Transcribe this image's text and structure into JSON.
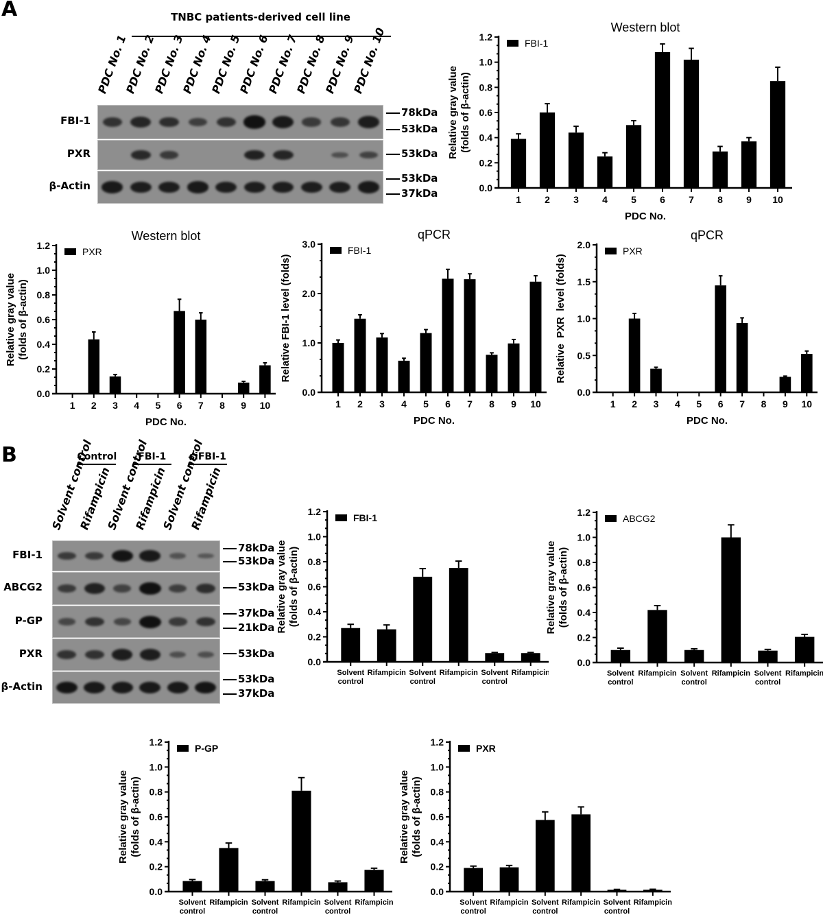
{
  "panel_a": {
    "letter": "A",
    "blot": {
      "title": "TNBC patients-derived cell line",
      "lanes": [
        "PDC No. 1",
        "PDC No. 2",
        "PDC No. 3",
        "PDC No. 4",
        "PDC No. 5",
        "PDC No. 6",
        "PDC No. 7",
        "PDC No. 8",
        "PDC No. 9",
        "PDC No. 10"
      ],
      "rows": [
        {
          "label": "FBI-1",
          "markers": [
            "78kDa",
            "53kDa"
          ],
          "intensity": [
            0.6,
            0.75,
            0.65,
            0.45,
            0.6,
            1.0,
            0.9,
            0.5,
            0.55,
            0.85
          ]
        },
        {
          "label": "PXR",
          "markers": [
            "53kDa"
          ],
          "intensity": [
            0,
            0.7,
            0.5,
            0,
            0,
            0.8,
            0.75,
            0,
            0.25,
            0.4
          ]
        },
        {
          "label": "β-Actin",
          "markers": [
            "53kDa",
            "37kDa"
          ],
          "intensity": [
            0.9,
            0.85,
            0.85,
            0.9,
            0.85,
            0.85,
            0.85,
            0.85,
            0.85,
            0.9
          ]
        }
      ]
    }
  },
  "panel_b": {
    "letter": "B",
    "blot": {
      "groups": [
        "Control",
        "FBI-1",
        "siFBI-1"
      ],
      "lanes": [
        "Solvent control",
        "Rifampicin",
        "Solvent control",
        "Rifampicin",
        "Solvent control",
        "Rifampicin"
      ],
      "rows": [
        {
          "label": "FBI-1",
          "markers": [
            "78kDa",
            "53kDa"
          ],
          "intensity": [
            0.5,
            0.5,
            0.95,
            0.9,
            0.2,
            0.15
          ]
        },
        {
          "label": "ABCG2",
          "markers": [
            "53kDa"
          ],
          "intensity": [
            0.5,
            0.8,
            0.4,
            1.0,
            0.45,
            0.65
          ]
        },
        {
          "label": "P-GP",
          "markers": [
            "37kDa",
            "21kDa"
          ],
          "intensity": [
            0.35,
            0.6,
            0.35,
            1.0,
            0.5,
            0.6
          ]
        },
        {
          "label": "PXR",
          "markers": [
            "53kDa"
          ],
          "intensity": [
            0.6,
            0.6,
            0.85,
            0.85,
            0.25,
            0.25
          ]
        },
        {
          "label": "β-Actin",
          "markers": [
            "53kDa",
            "37kDa"
          ],
          "intensity": [
            0.95,
            0.9,
            0.9,
            0.9,
            0.9,
            0.95
          ]
        }
      ]
    }
  },
  "chart_data": [
    {
      "id": "a_wb_fbi1",
      "type": "bar",
      "title": "Western blot",
      "xlabel": "PDC No.",
      "ylabel": "Relative gray value\n(folds of β-actin)",
      "legend": "FBI-1",
      "legend_bold": false,
      "categories": [
        "1",
        "2",
        "3",
        "4",
        "5",
        "6",
        "7",
        "8",
        "9",
        "10"
      ],
      "values": [
        0.39,
        0.6,
        0.44,
        0.25,
        0.5,
        1.08,
        1.02,
        0.29,
        0.37,
        0.85
      ],
      "errors": [
        0.04,
        0.07,
        0.05,
        0.03,
        0.035,
        0.065,
        0.09,
        0.04,
        0.03,
        0.11
      ],
      "ylim": [
        0,
        1.2
      ],
      "yticks": [
        "0.0",
        "0.2",
        "0.4",
        "0.6",
        "0.8",
        "1.0",
        "1.2"
      ],
      "minor": 2
    },
    {
      "id": "a_wb_pxr",
      "type": "bar",
      "title": "Western blot",
      "xlabel": "PDC No.",
      "ylabel": "Relative gray value\n(folds of β-actin)",
      "legend": "PXR",
      "legend_bold": false,
      "categories": [
        "1",
        "2",
        "3",
        "4",
        "5",
        "6",
        "7",
        "8",
        "9",
        "10"
      ],
      "values": [
        0,
        0.44,
        0.14,
        0,
        0,
        0.67,
        0.6,
        0,
        0.09,
        0.23
      ],
      "errors": [
        0,
        0.06,
        0.015,
        0,
        0,
        0.095,
        0.055,
        0,
        0.01,
        0.02
      ],
      "ylim": [
        0,
        1.2
      ],
      "yticks": [
        "0.0",
        "0.2",
        "0.4",
        "0.6",
        "0.8",
        "1.0",
        "1.2"
      ],
      "minor": 2
    },
    {
      "id": "a_qpcr_fbi1",
      "type": "bar",
      "title": "qPCR",
      "xlabel": "PDC No.",
      "ylabel": "Relative FBI-1 level (folds)",
      "legend": "FBI-1",
      "legend_bold": false,
      "categories": [
        "1",
        "2",
        "3",
        "4",
        "5",
        "6",
        "7",
        "8",
        "9",
        "10"
      ],
      "values": [
        1.0,
        1.49,
        1.11,
        0.64,
        1.2,
        2.3,
        2.29,
        0.76,
        0.99,
        2.24
      ],
      "errors": [
        0.06,
        0.08,
        0.08,
        0.05,
        0.07,
        0.19,
        0.11,
        0.04,
        0.08,
        0.12
      ],
      "ylim": [
        0,
        3.0
      ],
      "yticks": [
        "0.0",
        "1.0",
        "2.0",
        "3.0"
      ],
      "minor": 2
    },
    {
      "id": "a_qpcr_pxr",
      "type": "bar",
      "title": "qPCR",
      "xlabel": "PDC No.",
      "ylabel": "Relative  PXR  level (folds)",
      "legend": "PXR",
      "legend_bold": false,
      "categories": [
        "1",
        "2",
        "3",
        "4",
        "5",
        "6",
        "7",
        "8",
        "9",
        "10"
      ],
      "values": [
        0,
        1.0,
        0.32,
        0,
        0,
        1.45,
        0.94,
        0,
        0.21,
        0.52
      ],
      "errors": [
        0,
        0.07,
        0.02,
        0,
        0,
        0.13,
        0.07,
        0,
        0.01,
        0.04
      ],
      "ylim": [
        0,
        2.0
      ],
      "yticks": [
        "0.0",
        "0.5",
        "1.0",
        "1.5",
        "2.0"
      ],
      "minor": 2
    },
    {
      "id": "b_fbi1",
      "type": "bar",
      "title": "",
      "xlabel": "",
      "ylabel": "Relative gray value\n(folds of β-actin)",
      "legend": "FBI-1",
      "legend_bold": true,
      "categories": [
        "Solvent\ncontrol",
        "Rifampicin",
        "Solvent\ncontrol",
        "Rifampicin",
        "Solvent\ncontrol",
        "Rifampicin"
      ],
      "values": [
        0.27,
        0.26,
        0.68,
        0.75,
        0.07,
        0.07
      ],
      "errors": [
        0.03,
        0.035,
        0.065,
        0.055,
        0.005,
        0.005
      ],
      "ylim": [
        0,
        1.2
      ],
      "yticks": [
        "0.0",
        "0.2",
        "0.4",
        "0.6",
        "0.8",
        "1.0",
        "1.2"
      ],
      "minor": 2
    },
    {
      "id": "b_abcg2",
      "type": "bar",
      "title": "",
      "xlabel": "",
      "ylabel": "Relative gray value\n(folds of β-actin)",
      "legend": "ABCG2",
      "legend_bold": false,
      "categories": [
        "Solvent\ncontrol",
        "Rifampicin",
        "Solvent\ncontrol",
        "Rifampicin",
        "Solvent\ncontrol",
        "Rifampicin"
      ],
      "values": [
        0.1,
        0.42,
        0.1,
        1.0,
        0.095,
        0.205
      ],
      "errors": [
        0.015,
        0.035,
        0.01,
        0.1,
        0.01,
        0.02
      ],
      "ylim": [
        0,
        1.2
      ],
      "yticks": [
        "0.0",
        "0.2",
        "0.4",
        "0.6",
        "0.8",
        "1.0",
        "1.2"
      ],
      "minor": 2
    },
    {
      "id": "b_pgp",
      "type": "bar",
      "title": "",
      "xlabel": "",
      "ylabel": "Relative gray value\n(folds of β-actin)",
      "legend": "P-GP",
      "legend_bold": true,
      "categories": [
        "Solvent\ncontrol",
        "Rifampicin",
        "Solvent\ncontrol",
        "Rifampicin",
        "Solvent\ncontrol",
        "Rifampicin"
      ],
      "values": [
        0.085,
        0.35,
        0.085,
        0.81,
        0.075,
        0.175
      ],
      "errors": [
        0.012,
        0.04,
        0.01,
        0.105,
        0.01,
        0.013
      ],
      "ylim": [
        0,
        1.2
      ],
      "yticks": [
        "0.0",
        "0.2",
        "0.4",
        "0.6",
        "0.8",
        "1.0",
        "1.2"
      ],
      "minor": 2
    },
    {
      "id": "b_pxr",
      "type": "bar",
      "title": "",
      "xlabel": "",
      "ylabel": "Relative gray value\n(folds of β-actin)",
      "legend": "PXR",
      "legend_bold": true,
      "categories": [
        "Solvent\ncontrol",
        "Rifampicin",
        "Solvent\ncontrol",
        "Rifampicin",
        "Solvent\ncontrol",
        "Rifampicin"
      ],
      "values": [
        0.19,
        0.195,
        0.575,
        0.62,
        0.015,
        0.015
      ],
      "errors": [
        0.015,
        0.015,
        0.065,
        0.06,
        0.003,
        0.004
      ],
      "ylim": [
        0,
        1.2
      ],
      "yticks": [
        "0.0",
        "0.2",
        "0.4",
        "0.6",
        "0.8",
        "1.0",
        "1.2"
      ],
      "minor": 2
    }
  ]
}
